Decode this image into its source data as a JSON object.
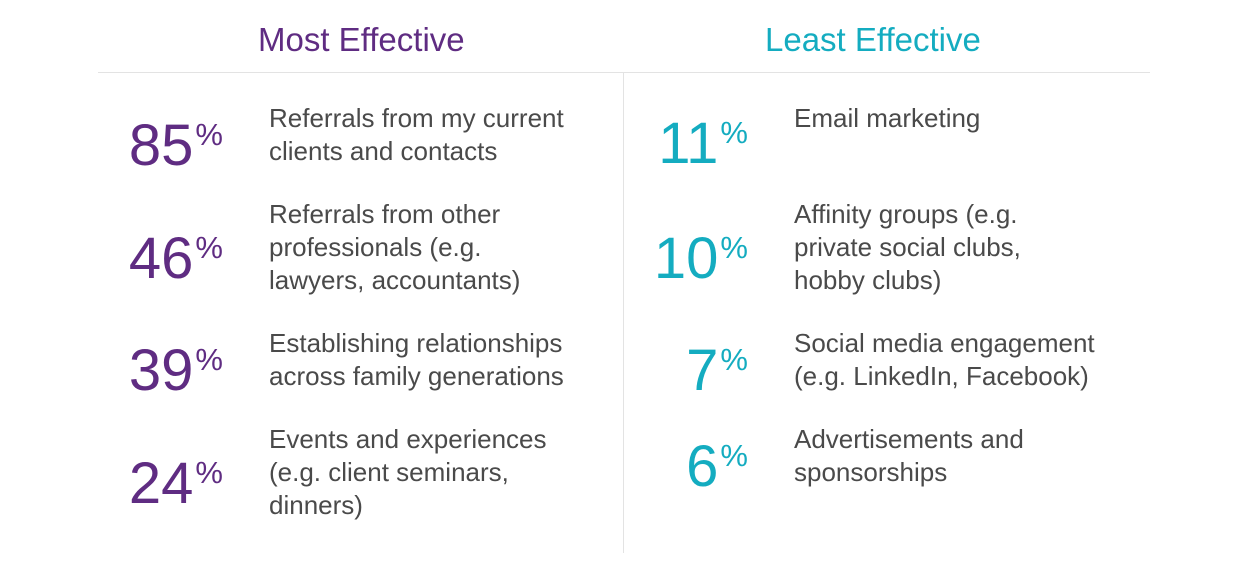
{
  "colors": {
    "most": "#5f2c82",
    "least": "#14acc0",
    "text": "#4a4a4a",
    "rule": "#e3e3e3"
  },
  "chart_data": {
    "type": "table",
    "unit": "%",
    "groups": [
      {
        "title": "Most Effective",
        "color": "#5f2c82",
        "items": [
          {
            "value": 85,
            "label": "Referrals from my current\nclients and contacts"
          },
          {
            "value": 46,
            "label": "Referrals from other\nprofessionals (e.g.\nlawyers, accountants)"
          },
          {
            "value": 39,
            "label": "Establishing relationships\nacross family generations"
          },
          {
            "value": 24,
            "label": "Events and experiences\n(e.g. client seminars,\ndinners)"
          }
        ]
      },
      {
        "title": "Least Effective",
        "color": "#14acc0",
        "items": [
          {
            "value": 11,
            "label": "Email marketing"
          },
          {
            "value": 10,
            "label": "Affinity groups (e.g.\nprivate social clubs,\nhobby clubs)"
          },
          {
            "value": 7,
            "label": "Social media engagement\n(e.g. LinkedIn, Facebook)"
          },
          {
            "value": 6,
            "label": "Advertisements and\nsponsorships"
          }
        ]
      }
    ]
  }
}
